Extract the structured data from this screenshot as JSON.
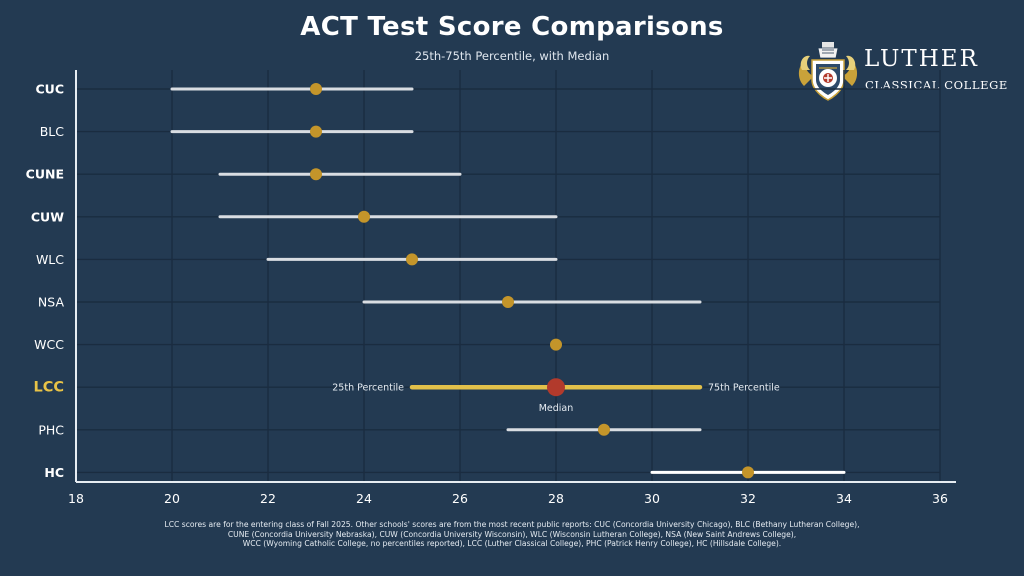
{
  "chart_data": {
    "type": "range-dot",
    "title": "ACT Test Score Comparisons",
    "subtitle": "25th-75th Percentile, with Median",
    "xlim": [
      18,
      36
    ],
    "x_ticks": [
      "18",
      "20",
      "22",
      "24",
      "26",
      "28",
      "30",
      "32",
      "34",
      "36"
    ],
    "grid": true,
    "schools": [
      {
        "label": "CUC",
        "p25": 20,
        "median": 23,
        "p75": 25,
        "bold": true
      },
      {
        "label": "BLC",
        "p25": 20,
        "median": 23,
        "p75": 25,
        "bold": false
      },
      {
        "label": "CUNE",
        "p25": 21,
        "median": 23,
        "p75": 26,
        "bold": true
      },
      {
        "label": "CUW",
        "p25": 21,
        "median": 24,
        "p75": 28,
        "bold": true
      },
      {
        "label": "WLC",
        "p25": 22,
        "median": 25,
        "p75": 28,
        "bold": false
      },
      {
        "label": "NSA",
        "p25": 24,
        "median": 27,
        "p75": 31,
        "bold": false
      },
      {
        "label": "WCC",
        "p25": null,
        "median": 28,
        "p75": null,
        "bold": false
      },
      {
        "label": "LCC",
        "p25": 25,
        "median": 28,
        "p75": 31,
        "bold": true,
        "highlight": true
      },
      {
        "label": "PHC",
        "p25": 27,
        "median": 29,
        "p75": 31,
        "bold": false
      },
      {
        "label": "HC",
        "p25": 30,
        "median": 32,
        "p75": 34,
        "bold": true
      }
    ],
    "annotations": {
      "p25_label": "25th Percentile",
      "p75_label": "75th Percentile",
      "median_label": "Median"
    }
  },
  "logo": {
    "name": "LUTHER",
    "subtitle": "CLASSICAL COLLEGE"
  },
  "footnote": [
    "LCC scores are for the entering class of Fall 2025. Other schools' scores are from the most recent public reports: CUC (Concordia University Chicago), BLC (Bethany Lutheran College),",
    "CUNE (Concordia University Nebraska), CUW (Concordia University Wisconsin), WLC (Wisconsin Lutheran College), NSA (New Saint Andrews College),",
    "WCC (Wyoming Catholic College, no percentiles reported), LCC (Luther Classical College), PHC (Patrick Henry College), HC (Hillsdale College)."
  ],
  "colors": {
    "background": "#233a52",
    "grid": "#1a2c40",
    "range_line": "#d9dde2",
    "range_line_hc": "#ffffff",
    "dot": "#c4952a",
    "highlight_line": "#e2c04a",
    "highlight_dot": "#b23a2c",
    "highlight_label": "#e8c347",
    "axis": "#e6ecf2"
  }
}
